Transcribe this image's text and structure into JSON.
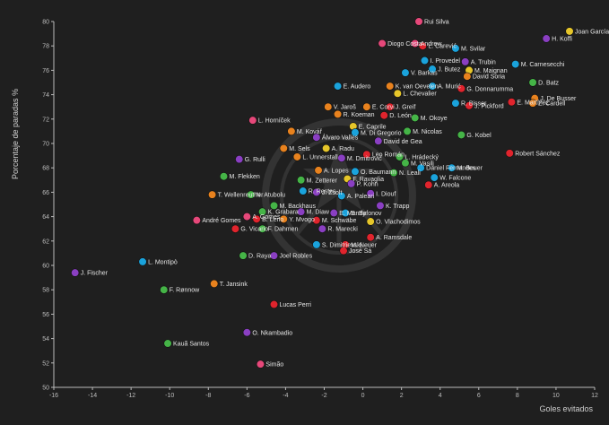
{
  "chart_data": {
    "type": "scatter",
    "title": "",
    "xlabel": "Goles evitados",
    "ylabel": "Porcentaje de paradas %",
    "xlim": [
      -16,
      12
    ],
    "ylim": [
      50,
      80
    ],
    "xticks": [
      -16,
      -14,
      -12,
      -10,
      -8,
      -6,
      -4,
      -2,
      0,
      2,
      4,
      6,
      8,
      10,
      12
    ],
    "yticks": [
      50,
      52,
      54,
      56,
      58,
      60,
      62,
      64,
      66,
      68,
      70,
      72,
      74,
      76,
      78,
      80
    ],
    "grid": false,
    "colors": {
      "background": "#1f1f1f",
      "red": "#e0242d",
      "pink": "#e6487a",
      "purple": "#8a3fc2",
      "blue": "#1aa3dc",
      "orange": "#e8821e",
      "yellow": "#e6c62a",
      "green": "#45b447",
      "text": "#e6e6e6",
      "axis": "#bbbbbb"
    },
    "points": [
      {
        "label": "Rui Silva",
        "x": 2.9,
        "y": 80.0,
        "color": "pink"
      },
      {
        "label": "Joan García",
        "x": 10.7,
        "y": 79.2,
        "color": "yellow"
      },
      {
        "label": "Diogo Costa",
        "x": 1.0,
        "y": 78.2,
        "color": "pink"
      },
      {
        "label": "Andrew",
        "x": 2.7,
        "y": 78.2,
        "color": "pink"
      },
      {
        "label": "L. Carević",
        "x": 3.1,
        "y": 78.0,
        "color": "red"
      },
      {
        "label": "H. Koffi",
        "x": 9.5,
        "y": 78.6,
        "color": "purple"
      },
      {
        "label": "M. Svilar",
        "x": 4.8,
        "y": 77.8,
        "color": "blue"
      },
      {
        "label": "I. Provedel",
        "x": 3.2,
        "y": 76.8,
        "color": "blue"
      },
      {
        "label": "A. Trubin",
        "x": 5.3,
        "y": 76.7,
        "color": "purple"
      },
      {
        "label": "M. Carnesecchi",
        "x": 7.9,
        "y": 76.5,
        "color": "blue"
      },
      {
        "label": "J. Butez",
        "x": 3.6,
        "y": 76.1,
        "color": "blue"
      },
      {
        "label": "M. Maignan",
        "x": 5.5,
        "y": 76.0,
        "color": "yellow"
      },
      {
        "label": "V. Barkas",
        "x": 2.2,
        "y": 75.8,
        "color": "blue"
      },
      {
        "label": "David Soria",
        "x": 5.4,
        "y": 75.5,
        "color": "orange"
      },
      {
        "label": "D. Batz",
        "x": 8.8,
        "y": 75.0,
        "color": "green"
      },
      {
        "label": "E. Audero",
        "x": -1.3,
        "y": 74.7,
        "color": "blue"
      },
      {
        "label": "K. van Oevelen",
        "x": 1.4,
        "y": 74.7,
        "color": "orange"
      },
      {
        "label": "A. Murić",
        "x": 3.6,
        "y": 74.7,
        "color": "blue"
      },
      {
        "label": "G. Donnarumma",
        "x": 5.1,
        "y": 74.5,
        "color": "red"
      },
      {
        "label": "L. Chevalier",
        "x": 1.8,
        "y": 74.1,
        "color": "yellow"
      },
      {
        "label": "J. De Busser",
        "x": 8.9,
        "y": 73.7,
        "color": "orange"
      },
      {
        "label": "E. Martínez",
        "x": 7.7,
        "y": 73.4,
        "color": "red"
      },
      {
        "label": "Z. Cardell",
        "x": 8.8,
        "y": 73.3,
        "color": "orange"
      },
      {
        "label": "R. Bisser",
        "x": 4.8,
        "y": 73.3,
        "color": "blue"
      },
      {
        "label": "J. Pickford",
        "x": 5.5,
        "y": 73.1,
        "color": "red"
      },
      {
        "label": "V. Jaroš",
        "x": -1.8,
        "y": 73.0,
        "color": "orange"
      },
      {
        "label": "E. Corvi",
        "x": 0.2,
        "y": 73.0,
        "color": "orange"
      },
      {
        "label": "J. Greif",
        "x": 1.4,
        "y": 73.0,
        "color": "red"
      },
      {
        "label": "R. Koeman",
        "x": -1.3,
        "y": 72.4,
        "color": "orange"
      },
      {
        "label": "D. León",
        "x": 1.1,
        "y": 72.3,
        "color": "red"
      },
      {
        "label": "M. Okoye",
        "x": 2.7,
        "y": 72.1,
        "color": "green"
      },
      {
        "label": "L. Horníček",
        "x": -5.7,
        "y": 71.9,
        "color": "pink"
      },
      {
        "label": "E. Caprile",
        "x": -0.5,
        "y": 71.4,
        "color": "yellow"
      },
      {
        "label": "M. Nicolas",
        "x": 2.3,
        "y": 71.0,
        "color": "green"
      },
      {
        "label": "G. Kobel",
        "x": 5.1,
        "y": 70.7,
        "color": "green"
      },
      {
        "label": "M. Kovář",
        "x": -3.7,
        "y": 71.0,
        "color": "orange"
      },
      {
        "label": "M. Di Gregorio",
        "x": -0.4,
        "y": 70.9,
        "color": "blue"
      },
      {
        "label": "Álvaro Valles",
        "x": -2.4,
        "y": 70.5,
        "color": "purple"
      },
      {
        "label": "David de Gea",
        "x": 0.8,
        "y": 70.2,
        "color": "purple"
      },
      {
        "label": "M. Sels",
        "x": -4.1,
        "y": 69.6,
        "color": "orange"
      },
      {
        "label": "A. Radu",
        "x": -1.9,
        "y": 69.6,
        "color": "yellow"
      },
      {
        "label": "Leo Román",
        "x": 0.2,
        "y": 69.1,
        "color": "red"
      },
      {
        "label": "L. Hrádecký",
        "x": 1.9,
        "y": 68.9,
        "color": "green"
      },
      {
        "label": "Robert Sánchez",
        "x": 7.6,
        "y": 69.2,
        "color": "red"
      },
      {
        "label": "G. Rulli",
        "x": -6.4,
        "y": 68.7,
        "color": "purple"
      },
      {
        "label": "L. Unnerstall",
        "x": -3.4,
        "y": 68.9,
        "color": "orange"
      },
      {
        "label": "M. Dmitrović",
        "x": -1.1,
        "y": 68.8,
        "color": "purple"
      },
      {
        "label": "M. Vasilj",
        "x": 2.2,
        "y": 68.4,
        "color": "green"
      },
      {
        "label": "Daniel Fernandes",
        "x": 3.0,
        "y": 68.0,
        "color": "blue"
      },
      {
        "label": "M. Beuer",
        "x": 4.6,
        "y": 68.0,
        "color": "blue"
      },
      {
        "label": "A. Lopes",
        "x": -2.3,
        "y": 67.8,
        "color": "orange"
      },
      {
        "label": "O. Baumann",
        "x": -0.4,
        "y": 67.7,
        "color": "blue"
      },
      {
        "label": "N. Leali",
        "x": 1.6,
        "y": 67.6,
        "color": "green"
      },
      {
        "label": "M. Flekken",
        "x": -7.2,
        "y": 67.3,
        "color": "green"
      },
      {
        "label": "M. Zetterer",
        "x": -3.2,
        "y": 67.0,
        "color": "green"
      },
      {
        "label": "F. Ravaglia",
        "x": -0.8,
        "y": 67.1,
        "color": "yellow"
      },
      {
        "label": "W. Falcone",
        "x": 3.7,
        "y": 67.2,
        "color": "blue"
      },
      {
        "label": "P. Kohn",
        "x": -0.6,
        "y": 66.7,
        "color": "purple"
      },
      {
        "label": "A. Areola",
        "x": 3.4,
        "y": 66.6,
        "color": "red"
      },
      {
        "label": "R. Restes",
        "x": -3.1,
        "y": 66.1,
        "color": "blue"
      },
      {
        "label": "J. Zsolt",
        "x": -2.4,
        "y": 66.0,
        "color": "purple"
      },
      {
        "label": "N. Atubolu",
        "x": -5.8,
        "y": 65.8,
        "color": "green"
      },
      {
        "label": "T. Wellenreuther",
        "x": -7.8,
        "y": 65.8,
        "color": "orange"
      },
      {
        "label": "A. Paleari",
        "x": -1.1,
        "y": 65.7,
        "color": "blue"
      },
      {
        "label": "I. Diouf",
        "x": 0.4,
        "y": 65.9,
        "color": "purple"
      },
      {
        "label": "M. Backhaus",
        "x": -4.6,
        "y": 64.9,
        "color": "green"
      },
      {
        "label": "K. Trapp",
        "x": 0.9,
        "y": 64.9,
        "color": "purple"
      },
      {
        "label": "K. Grabara",
        "x": -5.2,
        "y": 64.4,
        "color": "green"
      },
      {
        "label": "M. Diaw",
        "x": -3.2,
        "y": 64.4,
        "color": "purple"
      },
      {
        "label": "E. Mendy",
        "x": -1.5,
        "y": 64.3,
        "color": "purple"
      },
      {
        "label": "S. Safonov",
        "x": -0.9,
        "y": 64.3,
        "color": "blue"
      },
      {
        "label": "A. Gomes",
        "x": -6.0,
        "y": 64.0,
        "color": "pink"
      },
      {
        "label": "André Gomes",
        "x": -8.6,
        "y": 63.7,
        "color": "pink"
      },
      {
        "label": "B. Leno",
        "x": -5.5,
        "y": 63.8,
        "color": "red"
      },
      {
        "label": "Y. Mvogo",
        "x": -4.1,
        "y": 63.8,
        "color": "orange"
      },
      {
        "label": "M. Schwäbe",
        "x": -2.4,
        "y": 63.7,
        "color": "red"
      },
      {
        "label": "O. Vlachodimos",
        "x": 0.4,
        "y": 63.6,
        "color": "yellow"
      },
      {
        "label": "G. Vicario",
        "x": -6.6,
        "y": 63.0,
        "color": "red"
      },
      {
        "label": "F. Dahmen",
        "x": -5.2,
        "y": 63.0,
        "color": "green"
      },
      {
        "label": "R. Marecki",
        "x": -2.1,
        "y": 63.0,
        "color": "purple"
      },
      {
        "label": "A. Ramsdale",
        "x": 0.4,
        "y": 62.3,
        "color": "red"
      },
      {
        "label": "S. Dimitrievski",
        "x": -2.4,
        "y": 61.7,
        "color": "blue"
      },
      {
        "label": "M. Neuer",
        "x": -0.9,
        "y": 61.7,
        "color": "red"
      },
      {
        "label": "D. Raya",
        "x": -6.2,
        "y": 60.8,
        "color": "green"
      },
      {
        "label": "Joel Robles",
        "x": -4.6,
        "y": 60.8,
        "color": "purple"
      },
      {
        "label": "José Sá",
        "x": -1.0,
        "y": 61.2,
        "color": "red"
      },
      {
        "label": "L. Montipò",
        "x": -11.4,
        "y": 60.3,
        "color": "blue"
      },
      {
        "label": "J. Fischer",
        "x": -14.9,
        "y": 59.4,
        "color": "purple"
      },
      {
        "label": "T. Jansink",
        "x": -7.7,
        "y": 58.5,
        "color": "orange"
      },
      {
        "label": "F. Rønnow",
        "x": -10.3,
        "y": 58.0,
        "color": "green"
      },
      {
        "label": "Lucas Perri",
        "x": -4.6,
        "y": 56.8,
        "color": "red"
      },
      {
        "label": "O. Nkambadio",
        "x": -6.0,
        "y": 54.5,
        "color": "purple"
      },
      {
        "label": "Kauã Santos",
        "x": -10.1,
        "y": 53.6,
        "color": "green"
      },
      {
        "label": "Simão",
        "x": -5.3,
        "y": 51.9,
        "color": "pink"
      }
    ]
  }
}
